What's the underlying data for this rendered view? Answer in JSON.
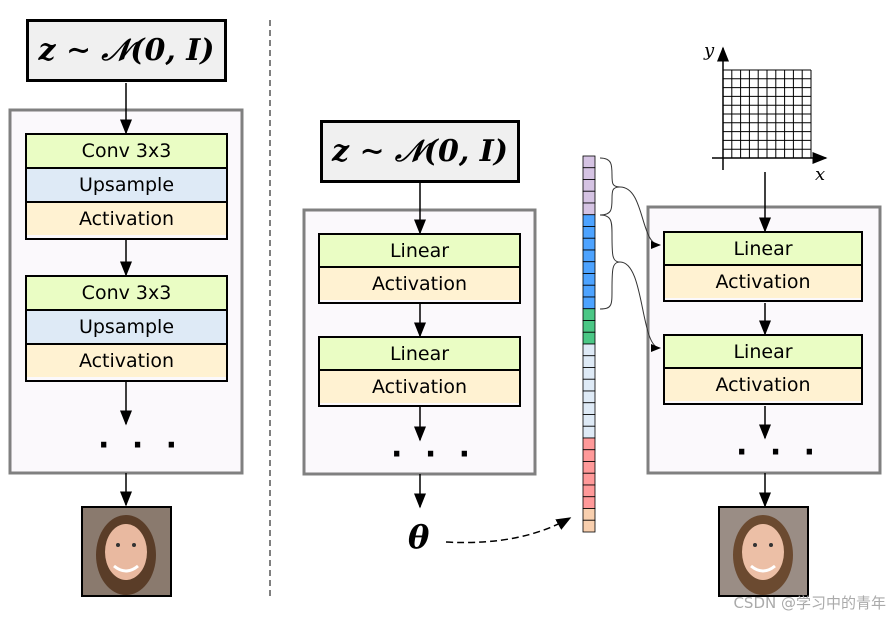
{
  "left": {
    "formula": "z ∼ 𝒩(0, I)",
    "blocks": [
      {
        "conv": "Conv 3x3",
        "upsample": "Upsample",
        "activation": "Activation"
      },
      {
        "conv": "Conv 3x3",
        "upsample": "Upsample",
        "activation": "Activation"
      }
    ],
    "ellipsis": "· · ·"
  },
  "middle": {
    "formula": "z ∼ 𝒩(0, I)",
    "blocks": [
      {
        "linear": "Linear",
        "activation": "Activation"
      },
      {
        "linear": "Linear",
        "activation": "Activation"
      }
    ],
    "ellipsis": "· · ·",
    "output": "θ"
  },
  "right": {
    "x_label": "x",
    "y_label": "y",
    "blocks": [
      {
        "linear": "Linear",
        "activation": "Activation"
      },
      {
        "linear": "Linear",
        "activation": "Activation"
      }
    ],
    "ellipsis": "· · ·"
  },
  "param_vector_colors": [
    "#d5c3e3",
    "#d5c3e3",
    "#d5c3e3",
    "#d5c3e3",
    "#d5c3e3",
    "#4da3ff",
    "#4da3ff",
    "#4da3ff",
    "#4da3ff",
    "#4da3ff",
    "#4da3ff",
    "#4da3ff",
    "#4da3ff",
    "#4bc785",
    "#4bc785",
    "#4bc785",
    "#deeaf6",
    "#deeaf6",
    "#deeaf6",
    "#deeaf6",
    "#deeaf6",
    "#deeaf6",
    "#deeaf6",
    "#deeaf6",
    "#ff9999",
    "#ff9999",
    "#ff9999",
    "#ff9999",
    "#ff9999",
    "#ff9999",
    "#f8cfae",
    "#f8cfae"
  ],
  "colors": {
    "conv": "#eafdc4",
    "upsample": "#deeaf6",
    "activation": "#fff2d2",
    "linear": "#eafdc4",
    "panel": "#fbf9fc",
    "panel_border": "#808080"
  },
  "watermark": "CSDN @学习中的青年"
}
